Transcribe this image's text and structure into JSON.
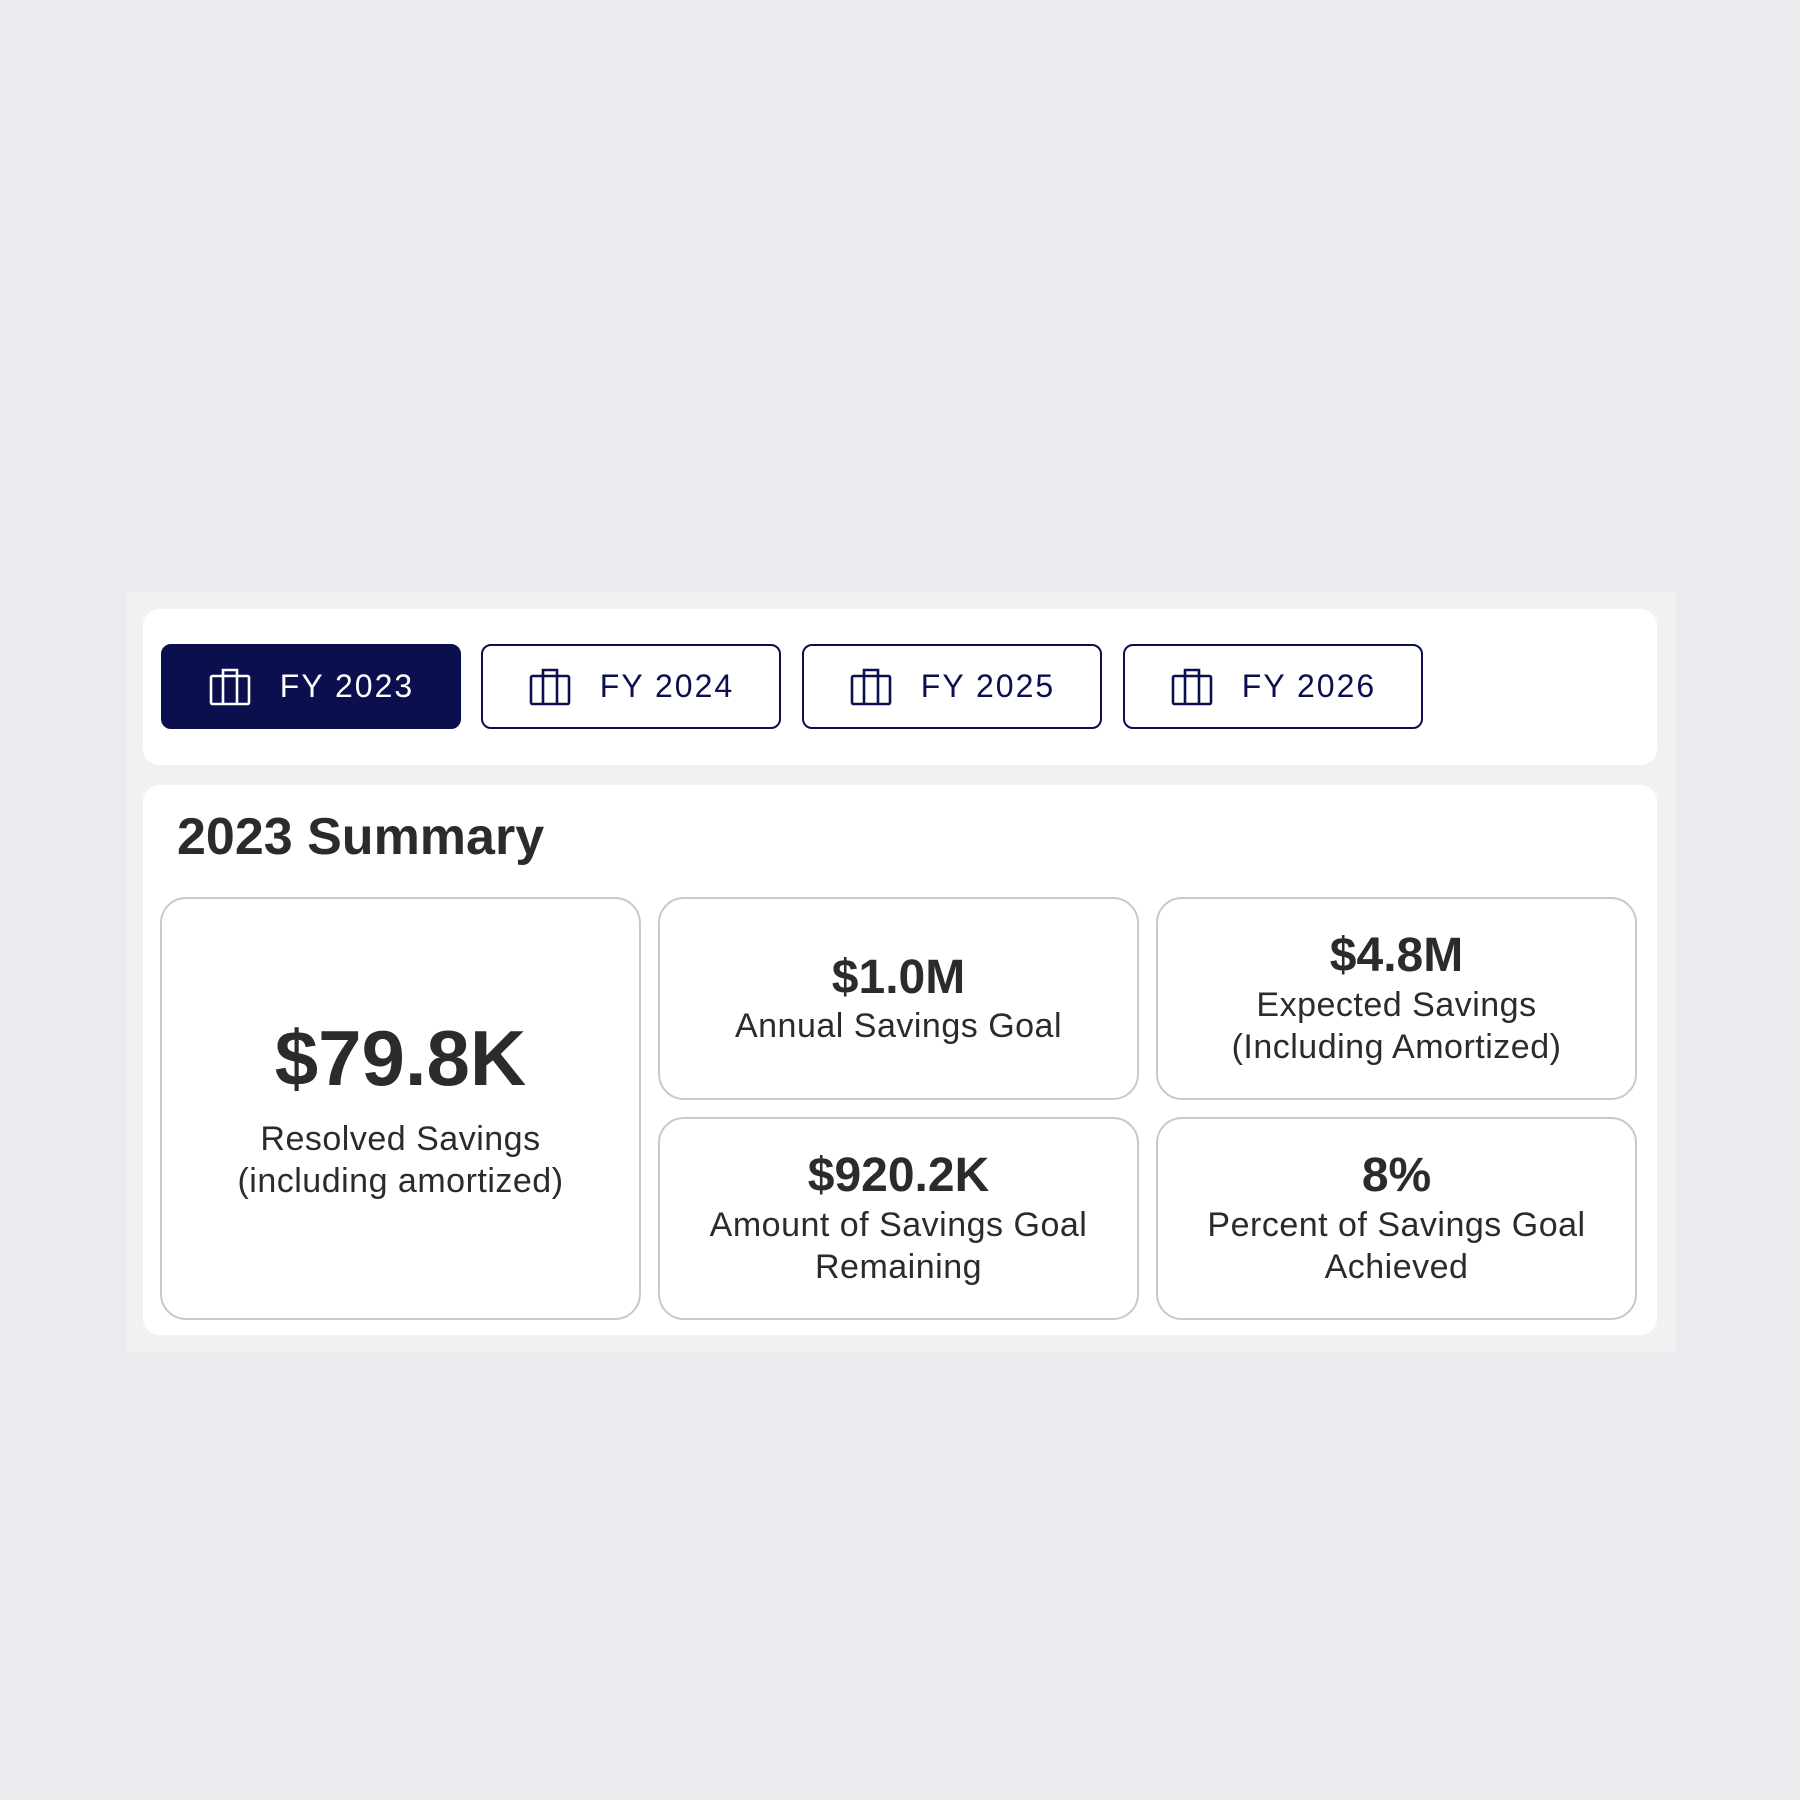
{
  "tabs": [
    {
      "label": "FY 2023",
      "icon": "briefcase-icon",
      "active": true
    },
    {
      "label": "FY 2024",
      "icon": "briefcase-icon",
      "active": false
    },
    {
      "label": "FY 2025",
      "icon": "briefcase-icon",
      "active": false
    },
    {
      "label": "FY 2026",
      "icon": "briefcase-icon",
      "active": false
    }
  ],
  "summary": {
    "title": "2023 Summary",
    "cards": {
      "resolved": {
        "value": "$79.8K",
        "label": "Resolved Savings\n(including amortized)"
      },
      "annual": {
        "value": "$1.0M",
        "label": "Annual Savings Goal"
      },
      "expected": {
        "value": "$4.8M",
        "label": "Expected Savings\n(Including Amortized)"
      },
      "remaining": {
        "value": "$920.2K",
        "label": "Amount of Savings Goal\nRemaining"
      },
      "percent": {
        "value": "8%",
        "label": "Percent of Savings Goal\nAchieved"
      }
    }
  },
  "colors": {
    "accent": "#0b0f4e",
    "background": "#e9ebef",
    "card_border": "#c9c9cc",
    "text": "#2b2b2b"
  }
}
